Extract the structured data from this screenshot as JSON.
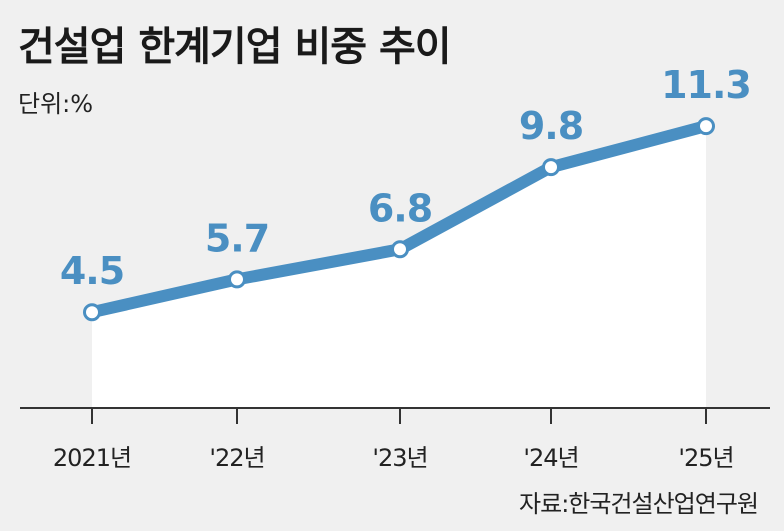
{
  "title": "건설업 한계기업 비중 추이",
  "unit_label": "단위:%",
  "source": "자료:한국건설산업연구원",
  "colors": {
    "line": "#4a8fc2",
    "area": "#ffffff",
    "background": "#f0f0f0",
    "axis": "#333333"
  },
  "chart_data": {
    "type": "line",
    "categories": [
      "2021년",
      "'22년",
      "'23년",
      "'24년",
      "'25년"
    ],
    "values": [
      4.5,
      5.7,
      6.8,
      9.8,
      11.3
    ],
    "data_labels": [
      "4.5",
      "5.7",
      "6.8",
      "9.8",
      "11.3"
    ],
    "ylim": [
      1.0,
      12.4
    ],
    "grid": false,
    "area_fill": true
  }
}
